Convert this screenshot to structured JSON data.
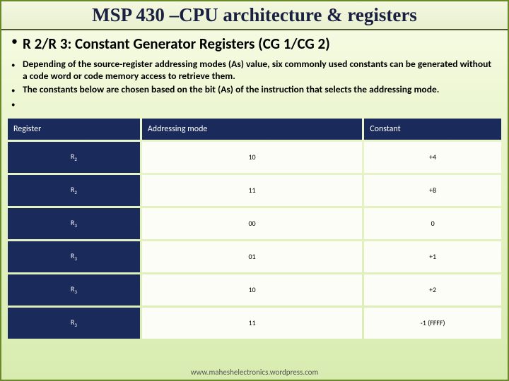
{
  "title": "MSP 430 –CPU architecture & registers",
  "subhead": "R 2/R 3: Constant Generator Registers (CG 1/CG 2)",
  "bullets": [
    "Depending of the source-register addressing modes (As) value, six commonly used constants can be generated without a code word or code memory access to retrieve them.",
    "The constants below are chosen based on the bit (As) of the instruction that selects the addressing mode."
  ],
  "table": {
    "columns": [
      "Register",
      "Addressing mode",
      "Constant"
    ],
    "rows": [
      {
        "reg": "R",
        "sub": "2",
        "mode": "10",
        "const": "+4"
      },
      {
        "reg": "R",
        "sub": "2",
        "mode": "11",
        "const": "+8"
      },
      {
        "reg": "R",
        "sub": "3",
        "mode": "00",
        "const": "0"
      },
      {
        "reg": "R",
        "sub": "3",
        "mode": "01",
        "const": "+1"
      },
      {
        "reg": "R",
        "sub": "3",
        "mode": "10",
        "const": "+2"
      },
      {
        "reg": "R",
        "sub": "3",
        "mode": "11",
        "const": "-1 (FFFF)"
      }
    ]
  },
  "footer_url": "www.maheshelectronics.wordpress.com",
  "colors": {
    "header_bg": "#1a2a5a",
    "cell_bg": "#fdfdf8",
    "slide_border": "#6a8a2a"
  }
}
